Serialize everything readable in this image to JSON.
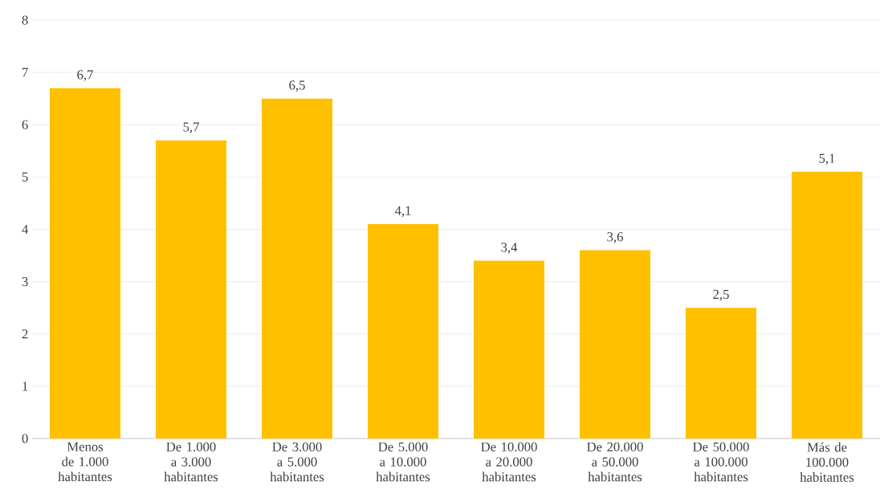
{
  "chart_data": {
    "type": "bar",
    "categories": [
      "Menos de 1.000 habitantes",
      "De 1.000 a 3.000 habitantes",
      "De 3.000 a 5.000 habitantes",
      "De 5.000 a 10.000 habitantes",
      "De 10.000 a 20.000 habitantes",
      "De 20.000 a 50.000 habitantes",
      "De 50.000 a 100.000 habitantes",
      "Más de 100.000 habitantes"
    ],
    "values": [
      6.7,
      5.7,
      6.5,
      4.1,
      3.4,
      3.6,
      2.5,
      5.1
    ],
    "value_labels": [
      "6,7",
      "5,7",
      "6,5",
      "4,1",
      "3,4",
      "3,6",
      "2,5",
      "5,1"
    ],
    "color": "#ffc000",
    "ylim": [
      0,
      8
    ],
    "yticks": [
      0,
      1,
      2,
      3,
      4,
      5,
      6,
      7,
      8
    ],
    "grid": "y"
  }
}
